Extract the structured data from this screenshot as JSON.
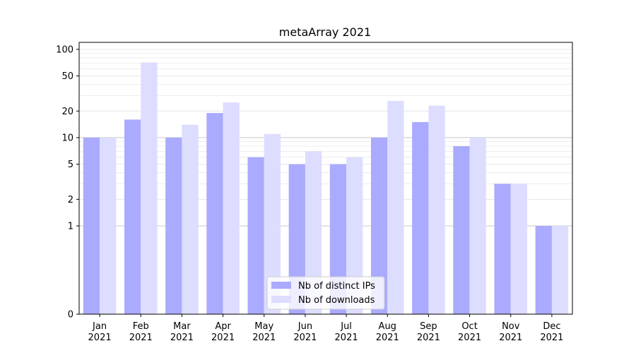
{
  "chart_data": {
    "type": "bar",
    "title": "metaArray 2021",
    "xlabel": "",
    "ylabel": "",
    "yscale": "symlog",
    "ylim": [
      0,
      120
    ],
    "yticks": [
      0,
      1,
      2,
      5,
      10,
      20,
      50,
      100
    ],
    "ytick_labels": [
      "0",
      "1",
      "2",
      "5",
      "10",
      "20",
      "50",
      "100"
    ],
    "categories": [
      "Jan\n2021",
      "Feb\n2021",
      "Mar\n2021",
      "Apr\n2021",
      "May\n2021",
      "Jun\n2021",
      "Jul\n2021",
      "Aug\n2021",
      "Sep\n2021",
      "Oct\n2021",
      "Nov\n2021",
      "Dec\n2021"
    ],
    "series": [
      {
        "name": "Nb of distinct IPs",
        "color": "#aaaaff",
        "values": [
          10,
          16,
          10,
          19,
          6,
          5,
          5,
          10,
          15,
          8,
          3,
          1
        ]
      },
      {
        "name": "Nb of downloads",
        "color": "#ddddff",
        "values": [
          10,
          71,
          14,
          25,
          11,
          7,
          6,
          26,
          23,
          10,
          3,
          1
        ]
      }
    ],
    "legend": {
      "placement": "bottom-center"
    },
    "grid": true
  }
}
